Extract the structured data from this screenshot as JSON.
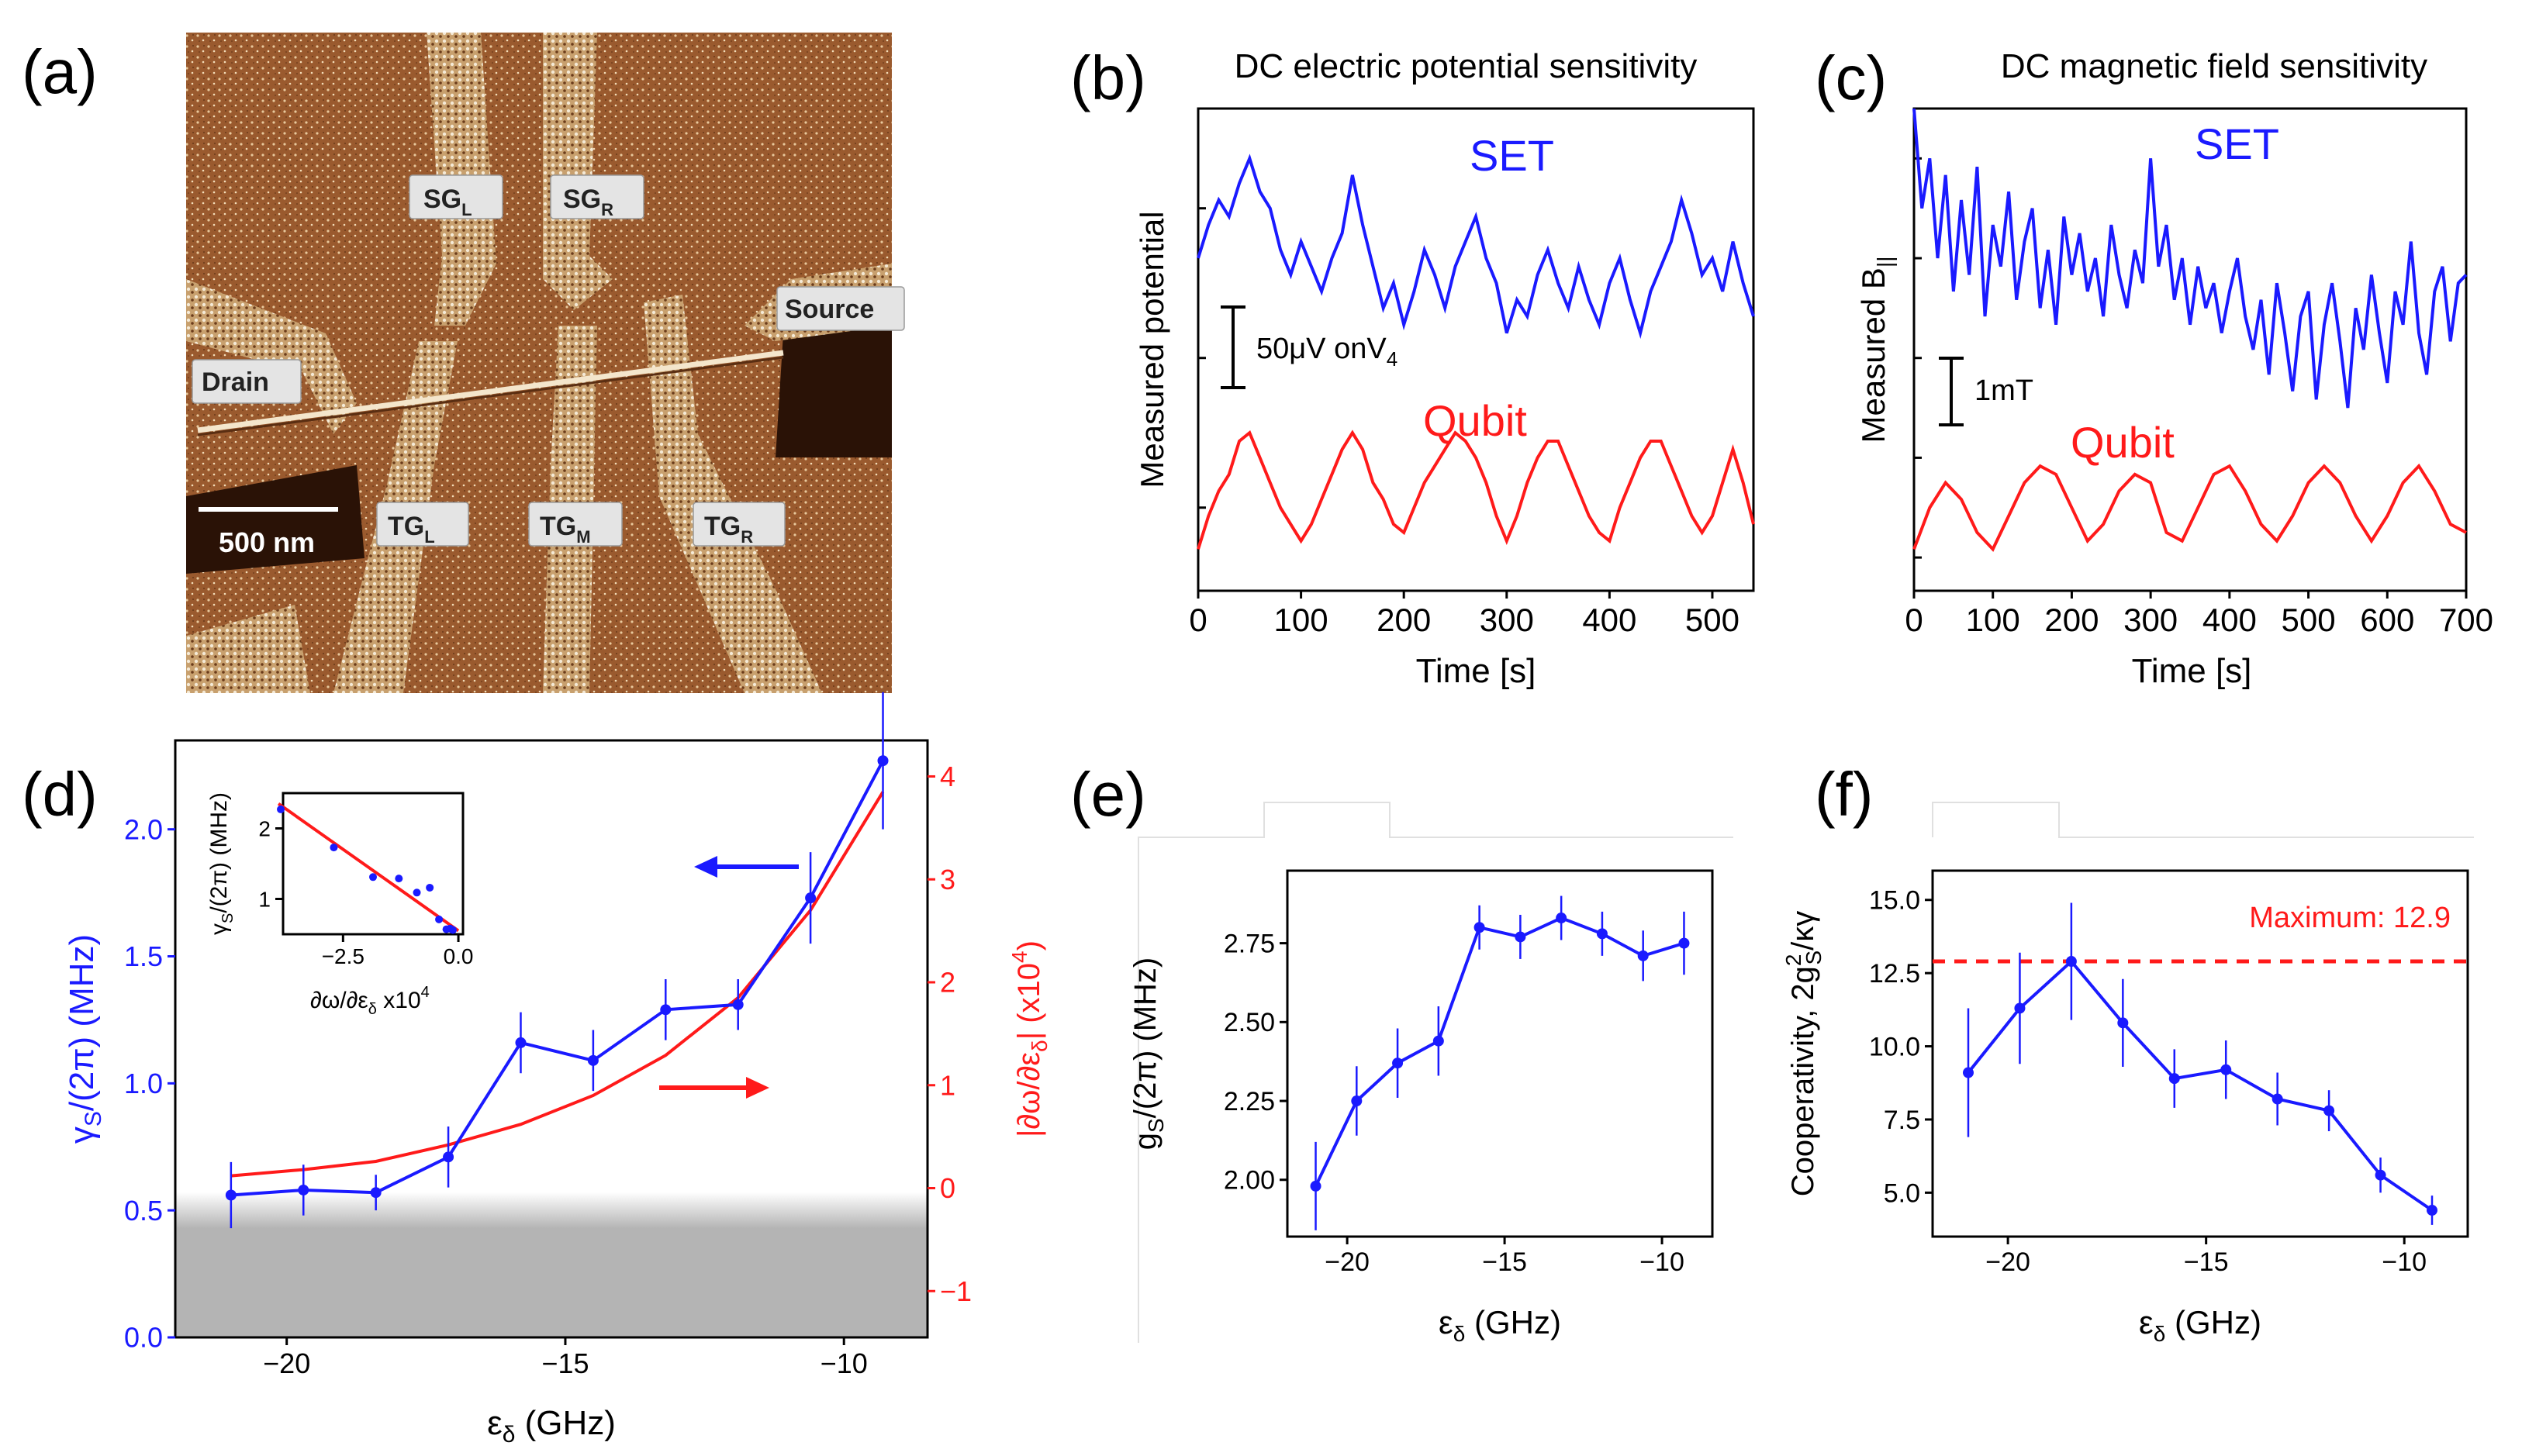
{
  "colors": {
    "blue": "#1a1aff",
    "red": "#ff1a1a",
    "axis": "#000000",
    "shade": "#b4b4b4"
  },
  "panel_a": {
    "label": "(a)",
    "gate_labels": [
      {
        "main": "SG",
        "sub": "L"
      },
      {
        "main": "SG",
        "sub": "R"
      },
      {
        "main": "Source",
        "sub": ""
      },
      {
        "main": "Drain",
        "sub": ""
      },
      {
        "main": "TG",
        "sub": "L"
      },
      {
        "main": "TG",
        "sub": "M"
      },
      {
        "main": "TG",
        "sub": "R"
      }
    ],
    "scale_bar": "500 nm"
  },
  "chart_data": [
    {
      "panel": "(b)",
      "type": "line",
      "title": "DC electric potential sensitivity",
      "xlabel": "Time [s]",
      "ylabel": "Measured potential",
      "xlim": [
        0,
        540
      ],
      "xticks": [
        0,
        100,
        200,
        300,
        400,
        500
      ],
      "scale_bar_label": "50μV onV",
      "scale_bar_sub": "4",
      "series": [
        {
          "name": "SET",
          "color": "blue",
          "x": [
            0,
            10,
            20,
            30,
            40,
            50,
            60,
            70,
            80,
            90,
            100,
            110,
            120,
            130,
            140,
            150,
            160,
            170,
            180,
            190,
            200,
            210,
            220,
            230,
            240,
            250,
            260,
            270,
            280,
            290,
            300,
            310,
            320,
            330,
            340,
            350,
            360,
            370,
            380,
            390,
            400,
            410,
            420,
            430,
            440,
            450,
            460,
            470,
            480,
            490,
            500,
            510,
            520,
            530,
            540
          ],
          "y": [
            1.2,
            1.6,
            1.9,
            1.7,
            2.1,
            2.4,
            2.0,
            1.8,
            1.3,
            1.0,
            1.4,
            1.1,
            0.8,
            1.2,
            1.5,
            2.2,
            1.6,
            1.1,
            0.6,
            0.9,
            0.4,
            0.8,
            1.3,
            1.0,
            0.6,
            1.1,
            1.4,
            1.7,
            1.2,
            0.9,
            0.3,
            0.7,
            0.5,
            1.0,
            1.3,
            0.9,
            0.6,
            1.1,
            0.7,
            0.4,
            0.9,
            1.2,
            0.7,
            0.3,
            0.8,
            1.1,
            1.4,
            1.9,
            1.5,
            1.0,
            1.2,
            0.8,
            1.4,
            0.9,
            0.5
          ]
        },
        {
          "name": "Qubit",
          "color": "red",
          "x": [
            0,
            10,
            20,
            30,
            40,
            50,
            60,
            70,
            80,
            90,
            100,
            110,
            120,
            130,
            140,
            150,
            160,
            170,
            180,
            190,
            200,
            210,
            220,
            230,
            240,
            250,
            260,
            270,
            280,
            290,
            300,
            310,
            320,
            330,
            340,
            350,
            360,
            370,
            380,
            390,
            400,
            410,
            420,
            430,
            440,
            450,
            460,
            470,
            480,
            490,
            500,
            510,
            520,
            530,
            540
          ],
          "y": [
            -2.3,
            -1.9,
            -1.6,
            -1.4,
            -1.0,
            -0.9,
            -1.2,
            -1.5,
            -1.8,
            -2.0,
            -2.2,
            -2.0,
            -1.7,
            -1.4,
            -1.1,
            -0.9,
            -1.1,
            -1.5,
            -1.7,
            -2.0,
            -2.1,
            -1.8,
            -1.5,
            -1.3,
            -1.1,
            -0.9,
            -1.0,
            -1.2,
            -1.5,
            -1.9,
            -2.2,
            -1.9,
            -1.5,
            -1.2,
            -1.0,
            -1.0,
            -1.3,
            -1.6,
            -1.9,
            -2.1,
            -2.2,
            -1.8,
            -1.5,
            -1.2,
            -1.0,
            -1.0,
            -1.3,
            -1.6,
            -1.9,
            -2.1,
            -1.9,
            -1.5,
            -1.1,
            -1.5,
            -2.0
          ]
        }
      ],
      "ylim": [
        -2.8,
        3.0
      ]
    },
    {
      "panel": "(c)",
      "type": "line",
      "title": "DC magnetic field sensitivity",
      "xlabel": "Time [s]",
      "ylabel": "Measured B",
      "ylabel_sub": "||",
      "xlim": [
        0,
        700
      ],
      "xticks": [
        0,
        100,
        200,
        300,
        400,
        500,
        600,
        700
      ],
      "scale_bar_label": "1mT",
      "series": [
        {
          "name": "SET",
          "color": "blue",
          "x": [
            0,
            10,
            20,
            30,
            40,
            50,
            60,
            70,
            80,
            90,
            100,
            110,
            120,
            130,
            140,
            150,
            160,
            170,
            180,
            190,
            200,
            210,
            220,
            230,
            240,
            250,
            260,
            270,
            280,
            290,
            300,
            310,
            320,
            330,
            340,
            350,
            360,
            370,
            380,
            390,
            400,
            410,
            420,
            430,
            440,
            450,
            460,
            470,
            480,
            490,
            500,
            510,
            520,
            530,
            540,
            550,
            560,
            570,
            580,
            590,
            600,
            610,
            620,
            630,
            640,
            650,
            660,
            670,
            680,
            690,
            700
          ],
          "y": [
            3.0,
            1.8,
            2.4,
            1.2,
            2.2,
            0.8,
            1.9,
            1.0,
            2.3,
            0.5,
            1.6,
            1.1,
            2.0,
            0.7,
            1.4,
            1.8,
            0.6,
            1.3,
            0.4,
            1.7,
            1.0,
            1.5,
            0.8,
            1.2,
            0.5,
            1.6,
            1.0,
            0.6,
            1.3,
            0.9,
            2.4,
            1.1,
            1.6,
            0.7,
            1.2,
            0.4,
            1.1,
            0.6,
            0.9,
            0.3,
            0.8,
            1.2,
            0.5,
            0.1,
            0.7,
            -0.2,
            0.9,
            0.3,
            -0.4,
            0.5,
            0.8,
            -0.5,
            0.4,
            0.9,
            0.2,
            -0.6,
            0.6,
            0.1,
            1.0,
            0.3,
            -0.3,
            0.8,
            0.4,
            1.4,
            0.3,
            -0.2,
            0.8,
            1.1,
            0.2,
            0.9,
            1.0
          ]
        },
        {
          "name": "Qubit",
          "color": "red",
          "x": [
            0,
            20,
            40,
            60,
            80,
            100,
            120,
            140,
            160,
            180,
            200,
            220,
            240,
            260,
            280,
            300,
            320,
            340,
            360,
            380,
            400,
            420,
            440,
            460,
            480,
            500,
            520,
            540,
            560,
            580,
            600,
            620,
            640,
            660,
            680,
            700
          ],
          "y": [
            -2.3,
            -1.8,
            -1.5,
            -1.7,
            -2.1,
            -2.3,
            -1.9,
            -1.5,
            -1.3,
            -1.4,
            -1.8,
            -2.2,
            -2.0,
            -1.6,
            -1.4,
            -1.5,
            -2.1,
            -2.2,
            -1.8,
            -1.4,
            -1.3,
            -1.6,
            -2.0,
            -2.2,
            -1.9,
            -1.5,
            -1.3,
            -1.5,
            -1.9,
            -2.2,
            -1.9,
            -1.5,
            -1.3,
            -1.6,
            -2.0,
            -2.1
          ]
        }
      ],
      "ylim": [
        -2.8,
        3.0
      ]
    },
    {
      "panel": "(d)",
      "type": "line",
      "xlabel": "ε",
      "xlabel_sub": "δ",
      "xlabel_unit": " (GHz)",
      "ylabel": "γ",
      "ylabel_sub": "S",
      "ylabel_rest": "/(2π) (MHz)",
      "y2label": "|∂ω/∂ε",
      "y2label_sub": "δ",
      "y2label_rest": "| (x10",
      "y2label_sup": "4",
      "y2label_end": ")",
      "xlim": [
        -22,
        -8.5
      ],
      "ylim": [
        0,
        2.35
      ],
      "y2lim": [
        -1.45,
        4.35
      ],
      "xticks": [
        -20,
        -15,
        -10
      ],
      "xtick_labels": [
        "−20",
        "−15",
        "−10"
      ],
      "yticks": [
        0.0,
        0.5,
        1.0,
        1.5,
        2.0
      ],
      "ytick_labels": [
        "0.0",
        "0.5",
        "1.0",
        "1.5",
        "2.0"
      ],
      "y2ticks": [
        -1,
        0,
        1,
        2,
        3,
        4
      ],
      "y2tick_labels": [
        "−1",
        "0",
        "1",
        "2",
        "3",
        "4"
      ],
      "shade_upper": 0.45,
      "series": [
        {
          "name": "γS/(2π)",
          "color": "blue",
          "axis": "left",
          "x": [
            -21.0,
            -19.7,
            -18.4,
            -17.1,
            -15.8,
            -14.5,
            -13.2,
            -11.9,
            -10.6,
            -9.3
          ],
          "y": [
            0.56,
            0.58,
            0.57,
            0.71,
            1.16,
            1.09,
            1.29,
            1.31,
            1.73,
            2.27
          ],
          "err": [
            0.13,
            0.1,
            0.07,
            0.12,
            0.12,
            0.12,
            0.12,
            0.1,
            0.18,
            0.27
          ]
        },
        {
          "name": "|∂ω/∂εδ|",
          "color": "red",
          "axis": "right",
          "x": [
            -21.0,
            -19.7,
            -18.4,
            -17.1,
            -15.8,
            -14.5,
            -13.2,
            -11.9,
            -10.6,
            -9.3
          ],
          "y": [
            0.12,
            0.18,
            0.26,
            0.42,
            0.62,
            0.9,
            1.29,
            1.85,
            2.7,
            3.85
          ]
        }
      ],
      "arrows": [
        {
          "to": "left"
        },
        {
          "to": "right"
        }
      ],
      "inset": {
        "xlim": [
          -3.8,
          0.1
        ],
        "ylim": [
          0.5,
          2.5
        ],
        "xticks": [
          -2.5,
          0.0
        ],
        "xtick_labels": [
          "−2.5",
          "0.0"
        ],
        "yticks": [
          1,
          2
        ],
        "ytick_labels": [
          "1",
          "2"
        ],
        "ylabel": "γ",
        "ylabel_sub": "S",
        "ylabel_rest": "/(2π) (MHz)",
        "xlabel": "∂ω/∂ε",
        "xlabel_sub": "δ",
        "xlabel_rest": " x10",
        "xlabel_sup": "4",
        "points_x": [
          -3.85,
          -2.7,
          -1.85,
          -1.29,
          -0.9,
          -0.62,
          -0.42,
          -0.26,
          -0.18,
          -0.12
        ],
        "points_y": [
          2.27,
          1.73,
          1.31,
          1.29,
          1.09,
          1.16,
          0.71,
          0.57,
          0.58,
          0.56
        ],
        "fit_x": [
          -3.9,
          0.0
        ],
        "fit_y": [
          2.35,
          0.55
        ]
      }
    },
    {
      "panel": "(e)",
      "type": "line",
      "xlabel": "ε",
      "xlabel_sub": "δ",
      "xlabel_unit": " (GHz)",
      "ylabel": "g",
      "ylabel_sub": "S",
      "ylabel_rest": "/(2π) (MHz)",
      "xlim": [
        -21.9,
        -8.4
      ],
      "ylim": [
        1.82,
        2.98
      ],
      "xticks": [
        -20,
        -15,
        -10
      ],
      "xtick_labels": [
        "−20",
        "−15",
        "−10"
      ],
      "yticks": [
        2.0,
        2.25,
        2.5,
        2.75
      ],
      "ytick_labels": [
        "2.00",
        "2.25",
        "2.50",
        "2.75"
      ],
      "series": [
        {
          "name": "gS/(2π)",
          "color": "blue",
          "x": [
            -21.0,
            -19.7,
            -18.4,
            -17.1,
            -15.8,
            -14.5,
            -13.2,
            -11.9,
            -10.6,
            -9.3
          ],
          "y": [
            1.98,
            2.25,
            2.37,
            2.44,
            2.8,
            2.77,
            2.83,
            2.78,
            2.71,
            2.75
          ],
          "err": [
            0.14,
            0.11,
            0.11,
            0.11,
            0.07,
            0.07,
            0.07,
            0.07,
            0.08,
            0.1
          ]
        }
      ]
    },
    {
      "panel": "(f)",
      "type": "line",
      "xlabel": "ε",
      "xlabel_sub": "δ",
      "xlabel_unit": " (GHz)",
      "ylabel": "Cooperativity, 2g",
      "ylabel_sup": "2",
      "ylabel_sub": "S",
      "ylabel_rest": "/κγ",
      "xlim": [
        -21.9,
        -8.4
      ],
      "ylim": [
        3.5,
        16.0
      ],
      "xticks": [
        -20,
        -15,
        -10
      ],
      "xtick_labels": [
        "−20",
        "−15",
        "−10"
      ],
      "yticks": [
        5.0,
        7.5,
        10.0,
        12.5,
        15.0
      ],
      "ytick_labels": [
        "5.0",
        "7.5",
        "10.0",
        "12.5",
        "15.0"
      ],
      "max_line": {
        "value": 12.9,
        "label": "Maximum: 12.9"
      },
      "series": [
        {
          "name": "Cooperativity",
          "color": "blue",
          "x": [
            -21.0,
            -19.7,
            -18.4,
            -17.1,
            -15.8,
            -14.5,
            -13.2,
            -11.9,
            -10.6,
            -9.3
          ],
          "y": [
            9.1,
            11.3,
            12.9,
            10.8,
            8.9,
            9.2,
            8.2,
            7.8,
            5.6,
            4.4
          ],
          "err": [
            2.2,
            1.9,
            2.0,
            1.5,
            1.0,
            1.0,
            0.9,
            0.7,
            0.6,
            0.5
          ]
        }
      ]
    }
  ]
}
